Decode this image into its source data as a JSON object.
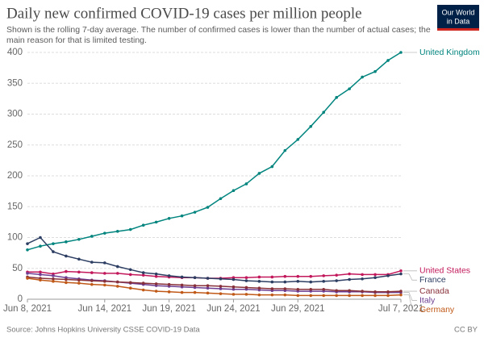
{
  "chart_data": {
    "type": "line",
    "title": "Daily new confirmed COVID-19 cases per million people",
    "subtitle": [
      "Shown is the rolling 7-day average. The number of confirmed cases is lower than the number of actual cases; the",
      "main reason for that is limited testing."
    ],
    "logo": [
      "Our World",
      "in Data"
    ],
    "source": "Source: Johns Hopkins University CSSE COVID-19 Data",
    "license": "CC BY",
    "x": [
      "2021-06-08",
      "2021-06-09",
      "2021-06-10",
      "2021-06-11",
      "2021-06-12",
      "2021-06-13",
      "2021-06-14",
      "2021-06-15",
      "2021-06-16",
      "2021-06-17",
      "2021-06-18",
      "2021-06-19",
      "2021-06-20",
      "2021-06-21",
      "2021-06-22",
      "2021-06-23",
      "2021-06-24",
      "2021-06-25",
      "2021-06-26",
      "2021-06-27",
      "2021-06-28",
      "2021-06-29",
      "2021-06-30",
      "2021-07-01",
      "2021-07-02",
      "2021-07-03",
      "2021-07-04",
      "2021-07-05",
      "2021-07-06",
      "2021-07-07"
    ],
    "xlim": [
      "2021-06-08",
      "2021-07-07"
    ],
    "xticks": [
      {
        "value": "2021-06-08",
        "label": "Jun 8, 2021"
      },
      {
        "value": "2021-06-14",
        "label": "Jun 14, 2021"
      },
      {
        "value": "2021-06-19",
        "label": "Jun 19, 2021"
      },
      {
        "value": "2021-06-24",
        "label": "Jun 24, 2021"
      },
      {
        "value": "2021-06-29",
        "label": "Jun 29, 2021"
      },
      {
        "value": "2021-07-07",
        "label": "Jul 7, 2021"
      }
    ],
    "ylim": [
      0,
      400
    ],
    "yticks": [
      0,
      50,
      100,
      150,
      200,
      250,
      300,
      350,
      400
    ],
    "grid": true,
    "series": [
      {
        "name": "United Kingdom",
        "color": "#00847e",
        "values": [
          80,
          86,
          90,
          93,
          97,
          102,
          107,
          110,
          113,
          120,
          125,
          131,
          135,
          141,
          149,
          163,
          176,
          187,
          204,
          215,
          241,
          259,
          280,
          303,
          327,
          341,
          360,
          369,
          387,
          400
        ]
      },
      {
        "name": "United States",
        "color": "#c2185b",
        "values": [
          44,
          44,
          41,
          45,
          44,
          43,
          42,
          42,
          40,
          39,
          37,
          36,
          35,
          35,
          34,
          34,
          35,
          35,
          36,
          36,
          37,
          37,
          37,
          38,
          39,
          41,
          40,
          40,
          40,
          46
        ]
      },
      {
        "name": "France",
        "color": "#2d3e63",
        "values": [
          90,
          100,
          77,
          70,
          65,
          60,
          59,
          53,
          48,
          43,
          41,
          38,
          36,
          35,
          34,
          33,
          32,
          30,
          29,
          28,
          28,
          29,
          28,
          29,
          30,
          32,
          33,
          35,
          38,
          41
        ]
      },
      {
        "name": "Italy",
        "color": "#6d3e91",
        "values": [
          42,
          40,
          38,
          35,
          33,
          31,
          30,
          28,
          26,
          24,
          22,
          21,
          20,
          19,
          18,
          17,
          16,
          16,
          15,
          14,
          14,
          13,
          13,
          13,
          12,
          12,
          12,
          11,
          11,
          11
        ]
      },
      {
        "name": "Canada",
        "color": "#883039",
        "values": [
          36,
          34,
          33,
          32,
          31,
          30,
          29,
          28,
          27,
          26,
          25,
          24,
          23,
          22,
          22,
          21,
          20,
          19,
          18,
          17,
          17,
          16,
          16,
          16,
          14,
          14,
          13,
          12,
          12,
          13
        ]
      },
      {
        "name": "Germany",
        "color": "#c05917",
        "values": [
          34,
          31,
          29,
          27,
          26,
          24,
          23,
          21,
          18,
          15,
          13,
          12,
          11,
          11,
          10,
          9,
          8,
          8,
          7,
          7,
          7,
          6,
          6,
          6,
          6,
          6,
          6,
          6,
          6,
          7
        ]
      }
    ]
  }
}
